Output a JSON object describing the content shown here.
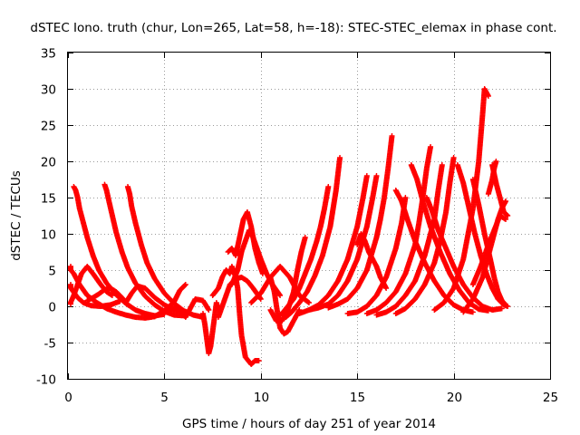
{
  "chart_data": {
    "type": "scatter",
    "title": "dSTEC Iono. truth (chur, Lon=265, Lat=58, h=-18): STEC-STEC_elemax in phase cont.",
    "xlabel": "GPS time / hours of day 251 of year 2014",
    "ylabel": "dSTEC  / TECUs",
    "xlim": [
      0,
      25
    ],
    "ylim": [
      -10,
      35
    ],
    "xticks": [
      "0",
      "5",
      "10",
      "15",
      "20",
      "25"
    ],
    "yticks": [
      "-10",
      "-5",
      "0",
      "5",
      "10",
      "15",
      "20",
      "25",
      "30",
      "35"
    ],
    "grid": true,
    "marker": "plus",
    "color": "#ff0000",
    "series": [
      {
        "x": [
          0.0,
          0.3,
          0.6,
          1.0,
          1.5,
          2.0,
          2.5,
          3.0,
          3.5,
          4.0,
          4.5,
          5.0,
          5.5
        ],
        "y": [
          5.5,
          4.5,
          3.0,
          1.5,
          0.5,
          -0.3,
          -0.8,
          -1.2,
          -1.5,
          -1.6,
          -1.4,
          -0.8,
          -0.3
        ]
      },
      {
        "x": [
          0.0,
          0.2,
          0.5,
          0.8,
          1.2,
          1.7,
          2.2,
          2.7
        ],
        "y": [
          3.0,
          2.3,
          1.2,
          0.5,
          0.1,
          0.0,
          0.2,
          0.7
        ]
      },
      {
        "x": [
          0.1,
          0.3,
          0.5,
          0.7,
          1.0,
          1.3,
          1.7,
          2.0,
          2.3
        ],
        "y": [
          0.3,
          1.5,
          3.0,
          4.5,
          5.5,
          4.5,
          3.0,
          2.0,
          1.5
        ]
      },
      {
        "x": [
          0.3,
          0.4,
          0.5,
          0.6,
          0.8,
          1.0,
          1.3,
          1.6,
          2.0,
          2.5,
          3.0,
          3.5,
          4.0,
          4.5,
          5.0
        ],
        "y": [
          16.5,
          16.0,
          15.0,
          13.5,
          11.5,
          9.5,
          7.0,
          5.0,
          3.2,
          1.6,
          0.4,
          -0.5,
          -1.0,
          -1.3,
          -1.1
        ]
      },
      {
        "x": [
          1.9,
          2.0,
          2.1,
          2.3,
          2.5,
          2.8,
          3.1,
          3.5,
          4.0,
          4.5,
          5.0,
          5.5,
          6.0
        ],
        "y": [
          16.8,
          16.0,
          14.8,
          12.5,
          10.2,
          7.5,
          5.3,
          3.2,
          1.4,
          0.2,
          -0.7,
          -1.2,
          -1.3
        ]
      },
      {
        "x": [
          1.0,
          1.3,
          1.6,
          1.9,
          2.2,
          2.5,
          2.8,
          3.0
        ],
        "y": [
          0.8,
          1.2,
          1.7,
          2.3,
          2.5,
          2.0,
          1.2,
          0.6
        ]
      },
      {
        "x": [
          3.1,
          3.2,
          3.3,
          3.5,
          3.8,
          4.1,
          4.5,
          5.0,
          5.5,
          6.0,
          6.5,
          7.0
        ],
        "y": [
          16.5,
          15.5,
          13.8,
          11.5,
          8.5,
          6.0,
          3.8,
          1.8,
          0.4,
          -0.6,
          -1.2,
          -1.5
        ]
      },
      {
        "x": [
          3.0,
          3.3,
          3.6,
          4.0,
          4.5,
          5.0,
          5.5,
          6.0
        ],
        "y": [
          0.5,
          1.8,
          2.8,
          2.5,
          1.2,
          0.2,
          -0.5,
          -0.9
        ]
      },
      {
        "x": [
          4.0,
          4.5,
          5.0,
          5.5,
          5.8,
          6.1
        ],
        "y": [
          -1.6,
          -1.4,
          -0.6,
          0.6,
          2.2,
          3.0
        ]
      },
      {
        "x": [
          5.5,
          5.8,
          6.1,
          6.3,
          6.6,
          7.0,
          7.3
        ],
        "y": [
          0.0,
          -0.5,
          -1.5,
          -0.5,
          1.0,
          0.8,
          -0.5
        ]
      },
      {
        "x": [
          7.0,
          7.1,
          7.2,
          7.3,
          7.4,
          7.5,
          7.6,
          7.7,
          7.8
        ],
        "y": [
          -1.0,
          -2.5,
          -4.5,
          -6.5,
          -5.5,
          -3.5,
          -1.5,
          0.5,
          -0.5
        ]
      },
      {
        "x": [
          7.5,
          7.8,
          8.0,
          8.2,
          8.4,
          8.5,
          8.7,
          8.8,
          8.9,
          9.0,
          9.2,
          9.5,
          9.7,
          9.9
        ],
        "y": [
          1.5,
          2.5,
          4.0,
          5.0,
          4.5,
          5.5,
          4.0,
          2.5,
          -1.0,
          -4.0,
          -7.0,
          -8.0,
          -7.5,
          -7.5
        ]
      },
      {
        "x": [
          7.8,
          8.0,
          8.2,
          8.4,
          8.7,
          9.0,
          9.3,
          9.6,
          10.0
        ],
        "y": [
          -1.5,
          0.0,
          1.5,
          3.0,
          3.8,
          4.0,
          3.5,
          2.5,
          1.0
        ]
      },
      {
        "x": [
          8.3,
          8.5,
          8.7,
          8.9,
          9.1,
          9.3,
          9.5,
          9.7,
          9.9,
          10.1
        ],
        "y": [
          7.5,
          8.0,
          7.0,
          9.5,
          12.0,
          13.0,
          11.0,
          8.0,
          6.0,
          4.5
        ]
      },
      {
        "x": [
          8.5,
          8.8,
          9.0,
          9.2,
          9.4,
          9.6,
          9.8,
          10.0,
          10.3,
          10.6,
          11.0
        ],
        "y": [
          3.0,
          5.0,
          7.5,
          9.0,
          10.5,
          9.5,
          8.0,
          6.5,
          4.5,
          3.0,
          1.5
        ]
      },
      {
        "x": [
          9.5,
          10.0,
          10.5,
          11.0,
          11.5,
          12.0,
          12.5
        ],
        "y": [
          0.5,
          1.8,
          4.0,
          5.5,
          4.0,
          1.5,
          0.5
        ]
      },
      {
        "x": [
          10.5,
          10.7,
          10.9,
          11.0,
          11.2,
          11.4,
          11.6,
          11.8,
          12.0
        ],
        "y": [
          4.0,
          2.0,
          -1.5,
          -3.0,
          -3.8,
          -3.5,
          -2.5,
          -1.5,
          -0.5
        ]
      },
      {
        "x": [
          10.5,
          10.8,
          11.1,
          11.4,
          11.7,
          11.9,
          12.1,
          12.3
        ],
        "y": [
          -0.5,
          -2.0,
          -2.0,
          -0.5,
          2.0,
          5.0,
          7.5,
          9.5
        ]
      },
      {
        "x": [
          10.8,
          11.1,
          11.4,
          11.7,
          12.0,
          12.3,
          12.6,
          12.9,
          13.1,
          13.3,
          13.5
        ],
        "y": [
          -1.5,
          -1.0,
          0.0,
          1.0,
          2.5,
          4.5,
          6.5,
          9.0,
          11.0,
          13.5,
          16.5
        ]
      },
      {
        "x": [
          11.3,
          11.6,
          12.0,
          12.4,
          12.8,
          13.2,
          13.6,
          13.9,
          14.1
        ],
        "y": [
          -1.5,
          -0.8,
          0.5,
          2.0,
          4.2,
          7.0,
          11.0,
          16.0,
          20.5
        ]
      },
      {
        "x": [
          12.0,
          12.5,
          13.0,
          13.5,
          14.0,
          14.5,
          15.0,
          15.3,
          15.5
        ],
        "y": [
          -1.0,
          -0.5,
          0.2,
          1.5,
          3.5,
          6.5,
          11.0,
          15.0,
          18.0
        ]
      },
      {
        "x": [
          12.5,
          13.0,
          13.5,
          14.0,
          14.5,
          15.0,
          15.5,
          15.8,
          16.0
        ],
        "y": [
          -0.5,
          -0.2,
          0.3,
          1.5,
          3.5,
          6.5,
          11.0,
          15.0,
          18.0
        ]
      },
      {
        "x": [
          13.5,
          14.0,
          14.5,
          15.0,
          15.5,
          16.0,
          16.2,
          16.4,
          16.6,
          16.8
        ],
        "y": [
          -0.2,
          0.3,
          1.0,
          2.5,
          5.0,
          9.5,
          12.0,
          15.0,
          19.0,
          23.5
        ]
      },
      {
        "x": [
          14.5,
          15.0,
          15.5,
          16.0,
          16.5,
          17.0,
          17.3,
          17.5
        ],
        "y": [
          -1.0,
          -0.8,
          0.0,
          1.5,
          4.0,
          8.0,
          11.5,
          15.0
        ]
      },
      {
        "x": [
          15.0,
          15.2,
          15.4,
          15.6,
          15.8,
          16.0,
          16.2,
          16.5
        ],
        "y": [
          8.5,
          10.0,
          9.0,
          7.5,
          6.5,
          5.5,
          4.0,
          2.5
        ]
      },
      {
        "x": [
          15.5,
          16.0,
          16.5,
          17.0,
          17.5,
          18.0,
          18.2,
          18.4,
          18.6,
          18.8
        ],
        "y": [
          -1.0,
          -0.5,
          0.5,
          2.0,
          4.5,
          8.5,
          11.5,
          15.0,
          19.0,
          22.0
        ]
      },
      {
        "x": [
          16.0,
          16.5,
          17.0,
          17.5,
          18.0,
          18.5,
          19.0,
          19.2,
          19.4
        ],
        "y": [
          -1.2,
          -0.8,
          0.0,
          1.5,
          3.5,
          7.0,
          12.0,
          16.0,
          19.5
        ]
      },
      {
        "x": [
          17.0,
          17.5,
          18.0,
          18.5,
          19.0,
          19.3,
          19.6,
          19.8,
          20.0
        ],
        "y": [
          -1.0,
          -0.3,
          1.0,
          3.0,
          6.0,
          9.0,
          13.0,
          17.0,
          20.5
        ]
      },
      {
        "x": [
          17.0,
          17.3,
          17.6,
          18.0,
          18.5,
          19.0,
          19.5,
          20.0,
          20.5,
          21.0
        ],
        "y": [
          16.0,
          14.5,
          12.0,
          9.0,
          6.0,
          3.5,
          1.5,
          0.2,
          -0.5,
          -0.8
        ]
      },
      {
        "x": [
          17.8,
          18.1,
          18.4,
          18.8,
          19.3,
          19.8,
          20.3,
          20.8,
          21.3,
          21.8
        ],
        "y": [
          19.5,
          17.5,
          14.5,
          11.0,
          7.5,
          4.5,
          2.2,
          0.5,
          -0.4,
          -0.6
        ]
      },
      {
        "x": [
          18.6,
          18.9,
          19.2,
          19.6,
          20.0,
          20.5,
          21.0,
          21.5,
          22.0,
          22.5
        ],
        "y": [
          15.0,
          13.0,
          10.5,
          8.0,
          5.5,
          3.0,
          1.2,
          0.0,
          -0.5,
          -0.3
        ]
      },
      {
        "x": [
          19.0,
          19.5,
          20.0,
          20.5,
          21.0,
          21.3,
          21.5,
          21.6,
          21.8
        ],
        "y": [
          -0.5,
          0.5,
          2.5,
          6.5,
          13.5,
          20.0,
          26.5,
          30.0,
          29.0
        ]
      },
      {
        "x": [
          20.2,
          20.5,
          20.8,
          21.1,
          21.4,
          21.7,
          22.0,
          22.3,
          22.6,
          22.8
        ],
        "y": [
          19.5,
          17.0,
          13.5,
          10.0,
          7.0,
          4.5,
          2.5,
          1.0,
          0.2,
          0.0
        ]
      },
      {
        "x": [
          20.5,
          21.0,
          21.5,
          21.8,
          22.1,
          22.3,
          22.5,
          22.7
        ],
        "y": [
          -0.8,
          1.0,
          4.0,
          7.0,
          10.0,
          12.0,
          13.5,
          14.5
        ]
      },
      {
        "x": [
          21.0,
          21.3,
          21.6,
          21.9,
          22.1,
          22.3,
          22.5,
          22.7
        ],
        "y": [
          17.5,
          14.0,
          10.0,
          6.5,
          4.0,
          2.0,
          0.8,
          0.2
        ]
      },
      {
        "x": [
          21.0,
          21.4,
          21.8,
          22.1,
          22.4,
          22.7
        ],
        "y": [
          3.0,
          5.5,
          8.5,
          10.5,
          12.5,
          12.0
        ]
      },
      {
        "x": [
          22.0,
          22.2,
          22.4,
          22.6,
          22.8
        ],
        "y": [
          19.5,
          17.0,
          15.0,
          13.0,
          12.5
        ]
      },
      {
        "x": [
          21.8,
          22.0,
          22.1,
          22.2
        ],
        "y": [
          15.5,
          17.5,
          19.0,
          20.0
        ]
      }
    ]
  }
}
